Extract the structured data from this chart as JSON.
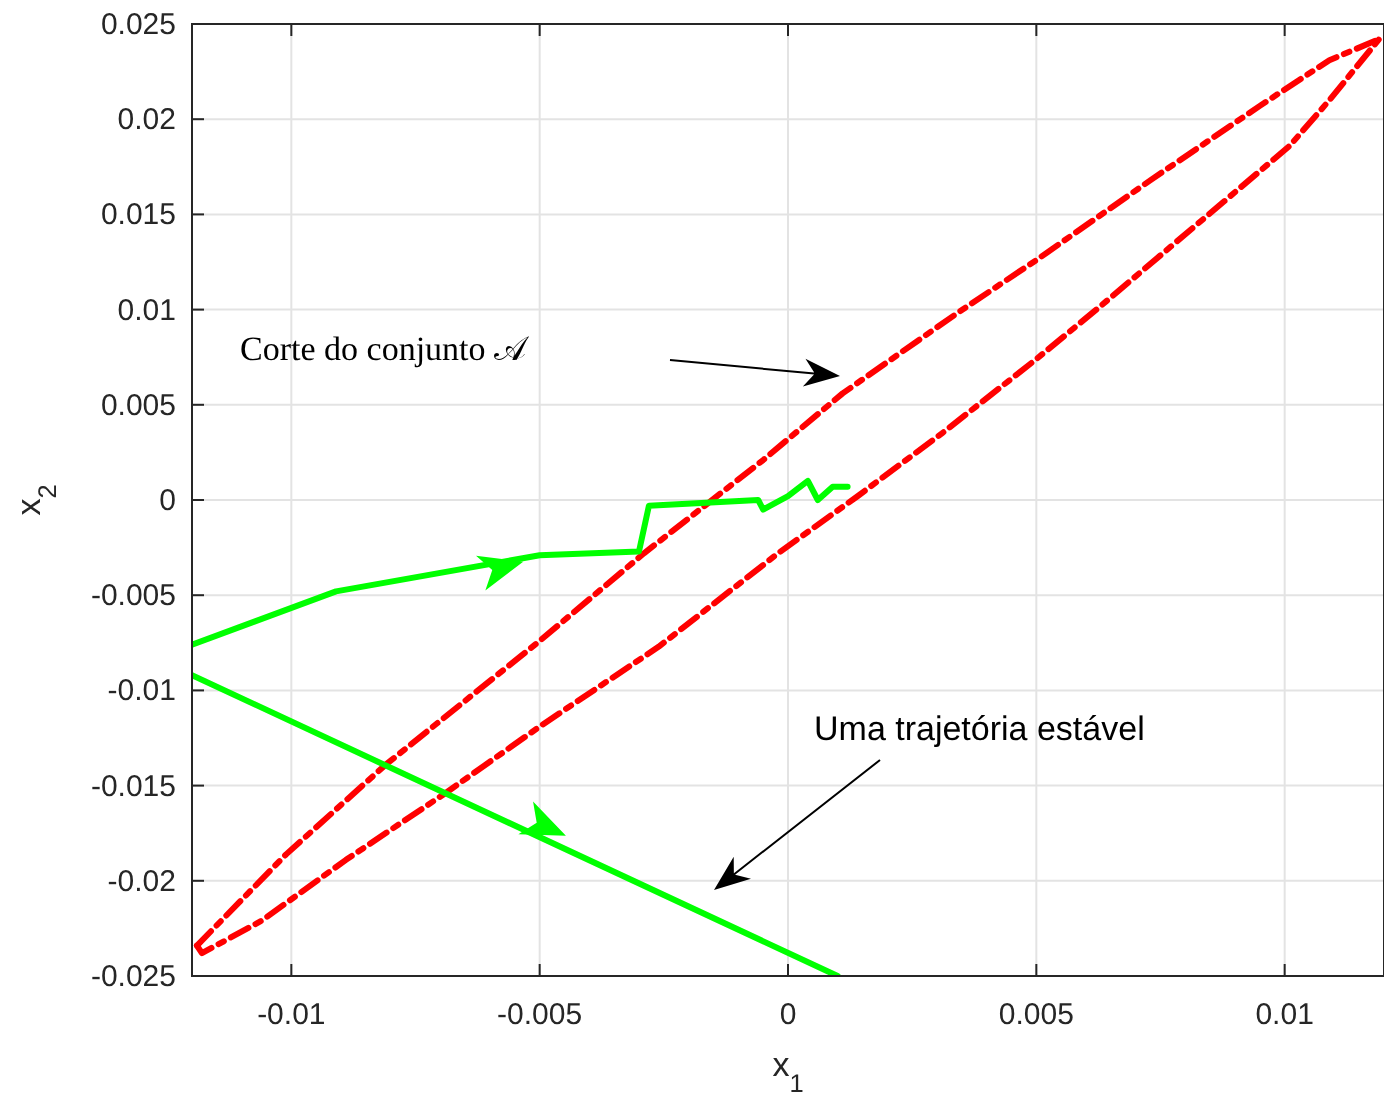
{
  "chart_data": {
    "type": "line",
    "xlabel": "x$_{1}$",
    "ylabel": "x$_{2}$",
    "xlim": [
      -0.012,
      0.012
    ],
    "ylim": [
      -0.025,
      0.025
    ],
    "xticks": [
      -0.01,
      -0.005,
      0,
      0.005,
      0.01
    ],
    "yticks": [
      -0.025,
      -0.02,
      -0.015,
      -0.01,
      -0.005,
      0,
      0.005,
      0.01,
      0.015,
      0.02,
      0.025
    ],
    "grid": true,
    "marker": "none",
    "series": [
      {
        "color": "#ff0000",
        "line_style": "dashed",
        "x": [
          -0.0119,
          -0.0101,
          -0.0081,
          -0.005,
          -0.0029,
          -0.0005,
          0.0011,
          0.0034,
          0.005,
          0.0073,
          0.0095,
          0.0109,
          0.0119
        ],
        "values": [
          -0.0234,
          -0.0186,
          -0.0139,
          -0.0074,
          -0.0028,
          0.0021,
          0.0056,
          0.0098,
          0.0126,
          0.0168,
          0.0207,
          0.0231,
          0.0242
        ]
      },
      {
        "color": "#ff0000",
        "line_style": "dashed",
        "x": [
          -0.0119,
          -0.0118,
          -0.0106,
          -0.0089,
          -0.0069,
          -0.005,
          -0.0026,
          -0.0002,
          0.0014,
          0.0031,
          0.005,
          0.0063,
          0.0082,
          0.0101,
          0.0109,
          0.0119
        ],
        "values": [
          -0.0234,
          -0.0238,
          -0.0221,
          -0.0189,
          -0.0154,
          -0.0119,
          -0.0077,
          -0.0028,
          0.0002,
          0.0035,
          0.0074,
          0.0102,
          0.0144,
          0.0186,
          0.021,
          0.0242
        ]
      },
      {
        "color": "#00ff00",
        "line_style": "solid",
        "x": [
          -0.012,
          -0.0091,
          -0.005,
          -0.003,
          -0.0028,
          -0.0006,
          -0.0005,
          0,
          0.0004,
          0.0006,
          0.0009,
          0.0012
        ],
        "values": [
          -0.0076,
          -0.0048,
          -0.0029,
          -0.0027,
          -0.0003,
          0,
          -0.0005,
          0.0002,
          0.001,
          0,
          0.0007,
          0.0007
        ]
      },
      {
        "color": "#00ff00",
        "line_style": "solid",
        "x": [
          -0.012,
          0.001
        ],
        "values": [
          -0.0092,
          -0.025
        ]
      }
    ],
    "annotations": [
      "Corte do conjunto 𝒜",
      "Uma trajetória estável"
    ]
  }
}
